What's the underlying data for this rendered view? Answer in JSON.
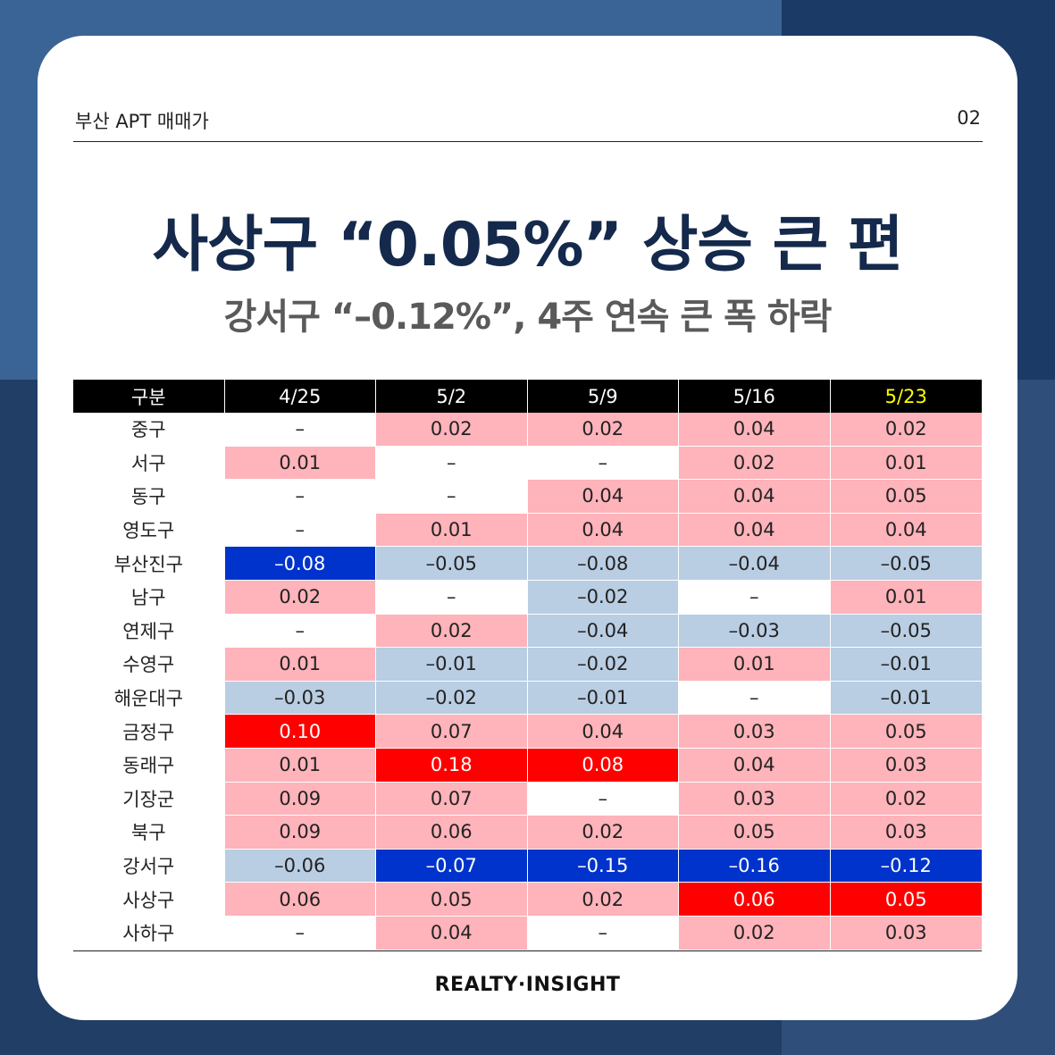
{
  "header": {
    "category": "부산 APT 매매가",
    "page_number": "02"
  },
  "title": "사상구 “0.05%” 상승 큰 편",
  "subtitle": "강서구 “–0.12%”, 4주 연속 큰 폭 하락",
  "brand": "REALTY·INSIGHT",
  "colors": {
    "strong_up": "#ff0000",
    "up": "#ffb3ba",
    "down": "#b9cde3",
    "strong_down": "#0033cc",
    "none": "#ffffff",
    "highlight_header": "#ffff00"
  },
  "chart_data": {
    "type": "table",
    "columns": [
      "구분",
      "4/25",
      "5/2",
      "5/9",
      "5/16",
      "5/23"
    ],
    "highlighted_column": "5/23",
    "rows": [
      [
        "중구",
        "–",
        "0.02",
        "0.02",
        "0.04",
        "0.02"
      ],
      [
        "서구",
        "0.01",
        "–",
        "–",
        "0.02",
        "0.01"
      ],
      [
        "동구",
        "–",
        "–",
        "0.04",
        "0.04",
        "0.05"
      ],
      [
        "영도구",
        "–",
        "0.01",
        "0.04",
        "0.04",
        "0.04"
      ],
      [
        "부산진구",
        "–0.08",
        "–0.05",
        "–0.08",
        "–0.04",
        "–0.05"
      ],
      [
        "남구",
        "0.02",
        "–",
        "–0.02",
        "–",
        "0.01"
      ],
      [
        "연제구",
        "–",
        "0.02",
        "–0.04",
        "–0.03",
        "–0.05"
      ],
      [
        "수영구",
        "0.01",
        "–0.01",
        "–0.02",
        "0.01",
        "–0.01"
      ],
      [
        "해운대구",
        "–0.03",
        "–0.02",
        "–0.01",
        "–",
        "–0.01"
      ],
      [
        "금정구",
        "0.10",
        "0.07",
        "0.04",
        "0.03",
        "0.05"
      ],
      [
        "동래구",
        "0.01",
        "0.18",
        "0.08",
        "0.04",
        "0.03"
      ],
      [
        "기장군",
        "0.09",
        "0.07",
        "–",
        "0.03",
        "0.02"
      ],
      [
        "북구",
        "0.09",
        "0.06",
        "0.02",
        "0.05",
        "0.03"
      ],
      [
        "강서구",
        "–0.06",
        "–0.07",
        "–0.15",
        "–0.16",
        "–0.12"
      ],
      [
        "사상구",
        "0.06",
        "0.05",
        "0.02",
        "0.06",
        "0.05"
      ],
      [
        "사하구",
        "–",
        "0.04",
        "–",
        "0.02",
        "0.03"
      ]
    ],
    "cell_styles": [
      [
        "none",
        "up",
        "up",
        "up",
        "up"
      ],
      [
        "up",
        "none",
        "none",
        "up",
        "up"
      ],
      [
        "none",
        "none",
        "up",
        "up",
        "up"
      ],
      [
        "none",
        "up",
        "up",
        "up",
        "up"
      ],
      [
        "strong_down",
        "down",
        "down",
        "down",
        "down"
      ],
      [
        "up",
        "none",
        "down",
        "none",
        "up"
      ],
      [
        "none",
        "up",
        "down",
        "down",
        "down"
      ],
      [
        "up",
        "down",
        "down",
        "up",
        "down"
      ],
      [
        "down",
        "down",
        "down",
        "none",
        "down"
      ],
      [
        "strong_up",
        "up",
        "up",
        "up",
        "up"
      ],
      [
        "up",
        "strong_up",
        "strong_up",
        "up",
        "up"
      ],
      [
        "up",
        "up",
        "none",
        "up",
        "up"
      ],
      [
        "up",
        "up",
        "up",
        "up",
        "up"
      ],
      [
        "down",
        "strong_down",
        "strong_down",
        "strong_down",
        "strong_down"
      ],
      [
        "up",
        "up",
        "up",
        "strong_up",
        "strong_up"
      ],
      [
        "none",
        "up",
        "none",
        "up",
        "up"
      ]
    ]
  }
}
